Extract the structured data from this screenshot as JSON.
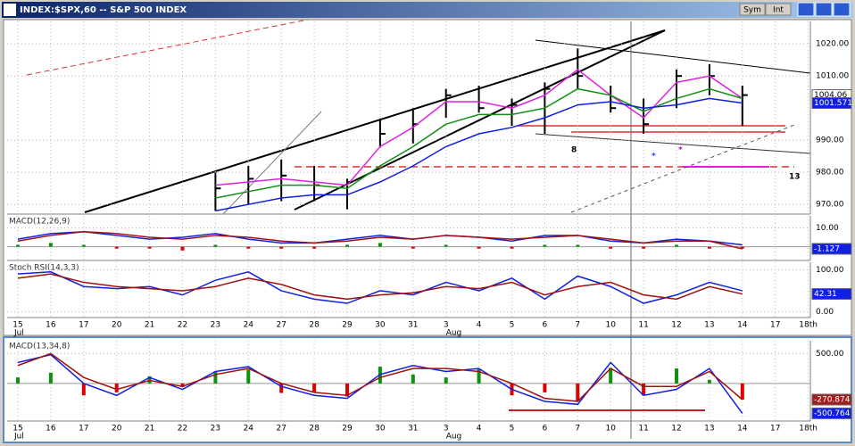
{
  "window": {
    "title": "INDEX:$SPX,60 -- S&P 500 INDEX",
    "buttons": [
      "Sym",
      "Int"
    ]
  },
  "chart_data": [
    {
      "type": "ohlc",
      "color": "#000000",
      "tag_color": "#ffffff",
      "high": [
        null,
        null,
        null,
        null,
        null,
        null,
        980,
        982,
        984,
        982,
        978,
        996.7,
        1000,
        1006,
        1007,
        1003,
        1008,
        1018.6,
        1007,
        1003,
        1012,
        1013.7,
        1007,
        null,
        null
      ],
      "low": [
        null,
        null,
        null,
        null,
        null,
        null,
        968,
        970,
        971,
        971,
        968.5,
        987.7,
        989,
        997,
        998.6,
        994.5,
        992,
        1006,
        998.6,
        992,
        1000,
        1004,
        994.5,
        null,
        null
      ],
      "close": [
        null,
        null,
        null,
        null,
        null,
        null,
        975,
        978,
        979,
        976,
        977,
        992,
        995,
        1004,
        1000,
        1001,
        1006,
        1010,
        1000,
        995,
        1010,
        1010,
        1004.06,
        null,
        null
      ],
      "series": [
        {
          "color": "#e020e0",
          "values": [
            null,
            null,
            null,
            null,
            null,
            null,
            976,
            977,
            978,
            977,
            976,
            988,
            994,
            1002,
            1002,
            1000,
            1004,
            1012,
            1004,
            997,
            1008,
            1010,
            1003,
            null,
            null
          ]
        },
        {
          "color": "#109010",
          "values": [
            null,
            null,
            null,
            null,
            null,
            null,
            972,
            974,
            976,
            976,
            975,
            982,
            988,
            995,
            998,
            998,
            1000,
            1006,
            1004,
            999,
            1003,
            1006,
            1003,
            null,
            null
          ]
        },
        {
          "color": "#1020e0",
          "tag_color": "#1020e0",
          "values": [
            null,
            null,
            null,
            null,
            null,
            null,
            968,
            970,
            972,
            973,
            973,
            977,
            982,
            988,
            992,
            994,
            997,
            1001,
            1002,
            1000,
            1001,
            1003,
            1001.571,
            null,
            null
          ]
        }
      ],
      "ylim": [
        967,
        1027
      ],
      "yticks": [
        {
          "value": 970,
          "label": "970.00"
        },
        {
          "value": 980,
          "label": "980.00"
        },
        {
          "value": 990,
          "label": "990.00"
        },
        {
          "value": 1010,
          "label": "1010.00"
        },
        {
          "value": 1020,
          "label": "1020.00"
        }
      ],
      "annotations": [
        "8",
        "*",
        "*",
        "13"
      ]
    },
    {
      "type": "line",
      "title": "MACD(12,26,9)",
      "hist_colors": [
        "#109010",
        "#e00000"
      ],
      "histogram": [
        1,
        2,
        1,
        -1,
        -1,
        -2,
        1,
        -1,
        -1,
        -1,
        1,
        2,
        -1,
        1,
        -1,
        -1,
        1,
        1,
        -1,
        -1,
        1,
        -1,
        -1,
        null,
        null
      ],
      "series": [
        {
          "color": "#1020e0",
          "values": [
            4,
            7,
            8,
            6,
            4,
            5,
            7,
            4,
            2,
            2,
            4,
            6,
            4,
            6,
            5,
            3,
            6,
            6,
            3,
            2,
            4,
            3,
            1,
            null,
            null
          ]
        },
        {
          "color": "#a01010",
          "tag_color": "#1020e0",
          "values": [
            3,
            6,
            8,
            7,
            5,
            4,
            6,
            5,
            3,
            2,
            3,
            5,
            4,
            6,
            5,
            4,
            5,
            6,
            4,
            2,
            3,
            3,
            -1.127,
            null,
            null
          ]
        }
      ],
      "ylim": [
        -7.3,
        16.4
      ],
      "yticks": [
        {
          "value": 10,
          "label": "10.00"
        }
      ]
    },
    {
      "type": "line",
      "title": "Stoch RSI(14,3,3)",
      "categories": [
        "15",
        "16",
        "17",
        "20",
        "21",
        "22",
        "23",
        "24",
        "27",
        "28",
        "29",
        "30",
        "31",
        "3",
        "4",
        "5",
        "6",
        "7",
        "10",
        "11",
        "12",
        "13",
        "14",
        "17",
        "18th"
      ],
      "months": [
        "Jul",
        "Aug"
      ],
      "series": [
        {
          "color": "#1020e0",
          "values": [
            90,
            95,
            60,
            55,
            60,
            40,
            75,
            95,
            50,
            30,
            20,
            50,
            40,
            70,
            50,
            80,
            30,
            85,
            60,
            20,
            40,
            70,
            50,
            null,
            null
          ]
        },
        {
          "color": "#a01010",
          "tag_color": "#1020e0",
          "values": [
            80,
            90,
            70,
            60,
            55,
            50,
            60,
            80,
            65,
            40,
            30,
            40,
            45,
            60,
            55,
            70,
            40,
            60,
            70,
            40,
            30,
            60,
            42.31,
            null,
            null
          ]
        }
      ],
      "ylim": [
        -14,
        118
      ],
      "yticks": [
        {
          "value": 0,
          "label": "0.00"
        },
        {
          "value": 100,
          "label": "100.00"
        }
      ]
    },
    {
      "type": "line",
      "title": "MACD(13,34,8)",
      "hist_colors": [
        "#109010",
        "#e00000"
      ],
      "categories": [
        "15",
        "16",
        "17",
        "20",
        "21",
        "22",
        "23",
        "24",
        "27",
        "28",
        "29",
        "30",
        "31",
        "3",
        "4",
        "5",
        "6",
        "7",
        "10",
        "11",
        "12",
        "13",
        "14",
        "17",
        "18th"
      ],
      "months": [
        "Jul",
        "Aug"
      ],
      "histogram": [
        100,
        180,
        -200,
        -150,
        120,
        -60,
        200,
        230,
        -160,
        -150,
        -220,
        280,
        150,
        100,
        240,
        -200,
        -150,
        -300,
        260,
        -200,
        250,
        60,
        -270,
        null,
        null
      ],
      "series": [
        {
          "color": "#1020e0",
          "tag_color": "#1020e0",
          "values": [
            350,
            480,
            0,
            -200,
            100,
            -100,
            200,
            280,
            -50,
            -200,
            -250,
            150,
            300,
            200,
            250,
            -100,
            -300,
            -350,
            350,
            -200,
            -100,
            250,
            -500.764,
            null,
            null
          ]
        },
        {
          "color": "#a01010",
          "tag_color": "#a02020",
          "values": [
            300,
            500,
            100,
            -100,
            50,
            -50,
            150,
            250,
            0,
            -150,
            -200,
            100,
            250,
            250,
            200,
            0,
            -250,
            -300,
            250,
            -50,
            -50,
            200,
            -270.874,
            null,
            null
          ]
        }
      ],
      "ylim": [
        -629,
        714
      ],
      "yticks": [
        {
          "value": 500,
          "label": "500.00"
        }
      ]
    }
  ]
}
